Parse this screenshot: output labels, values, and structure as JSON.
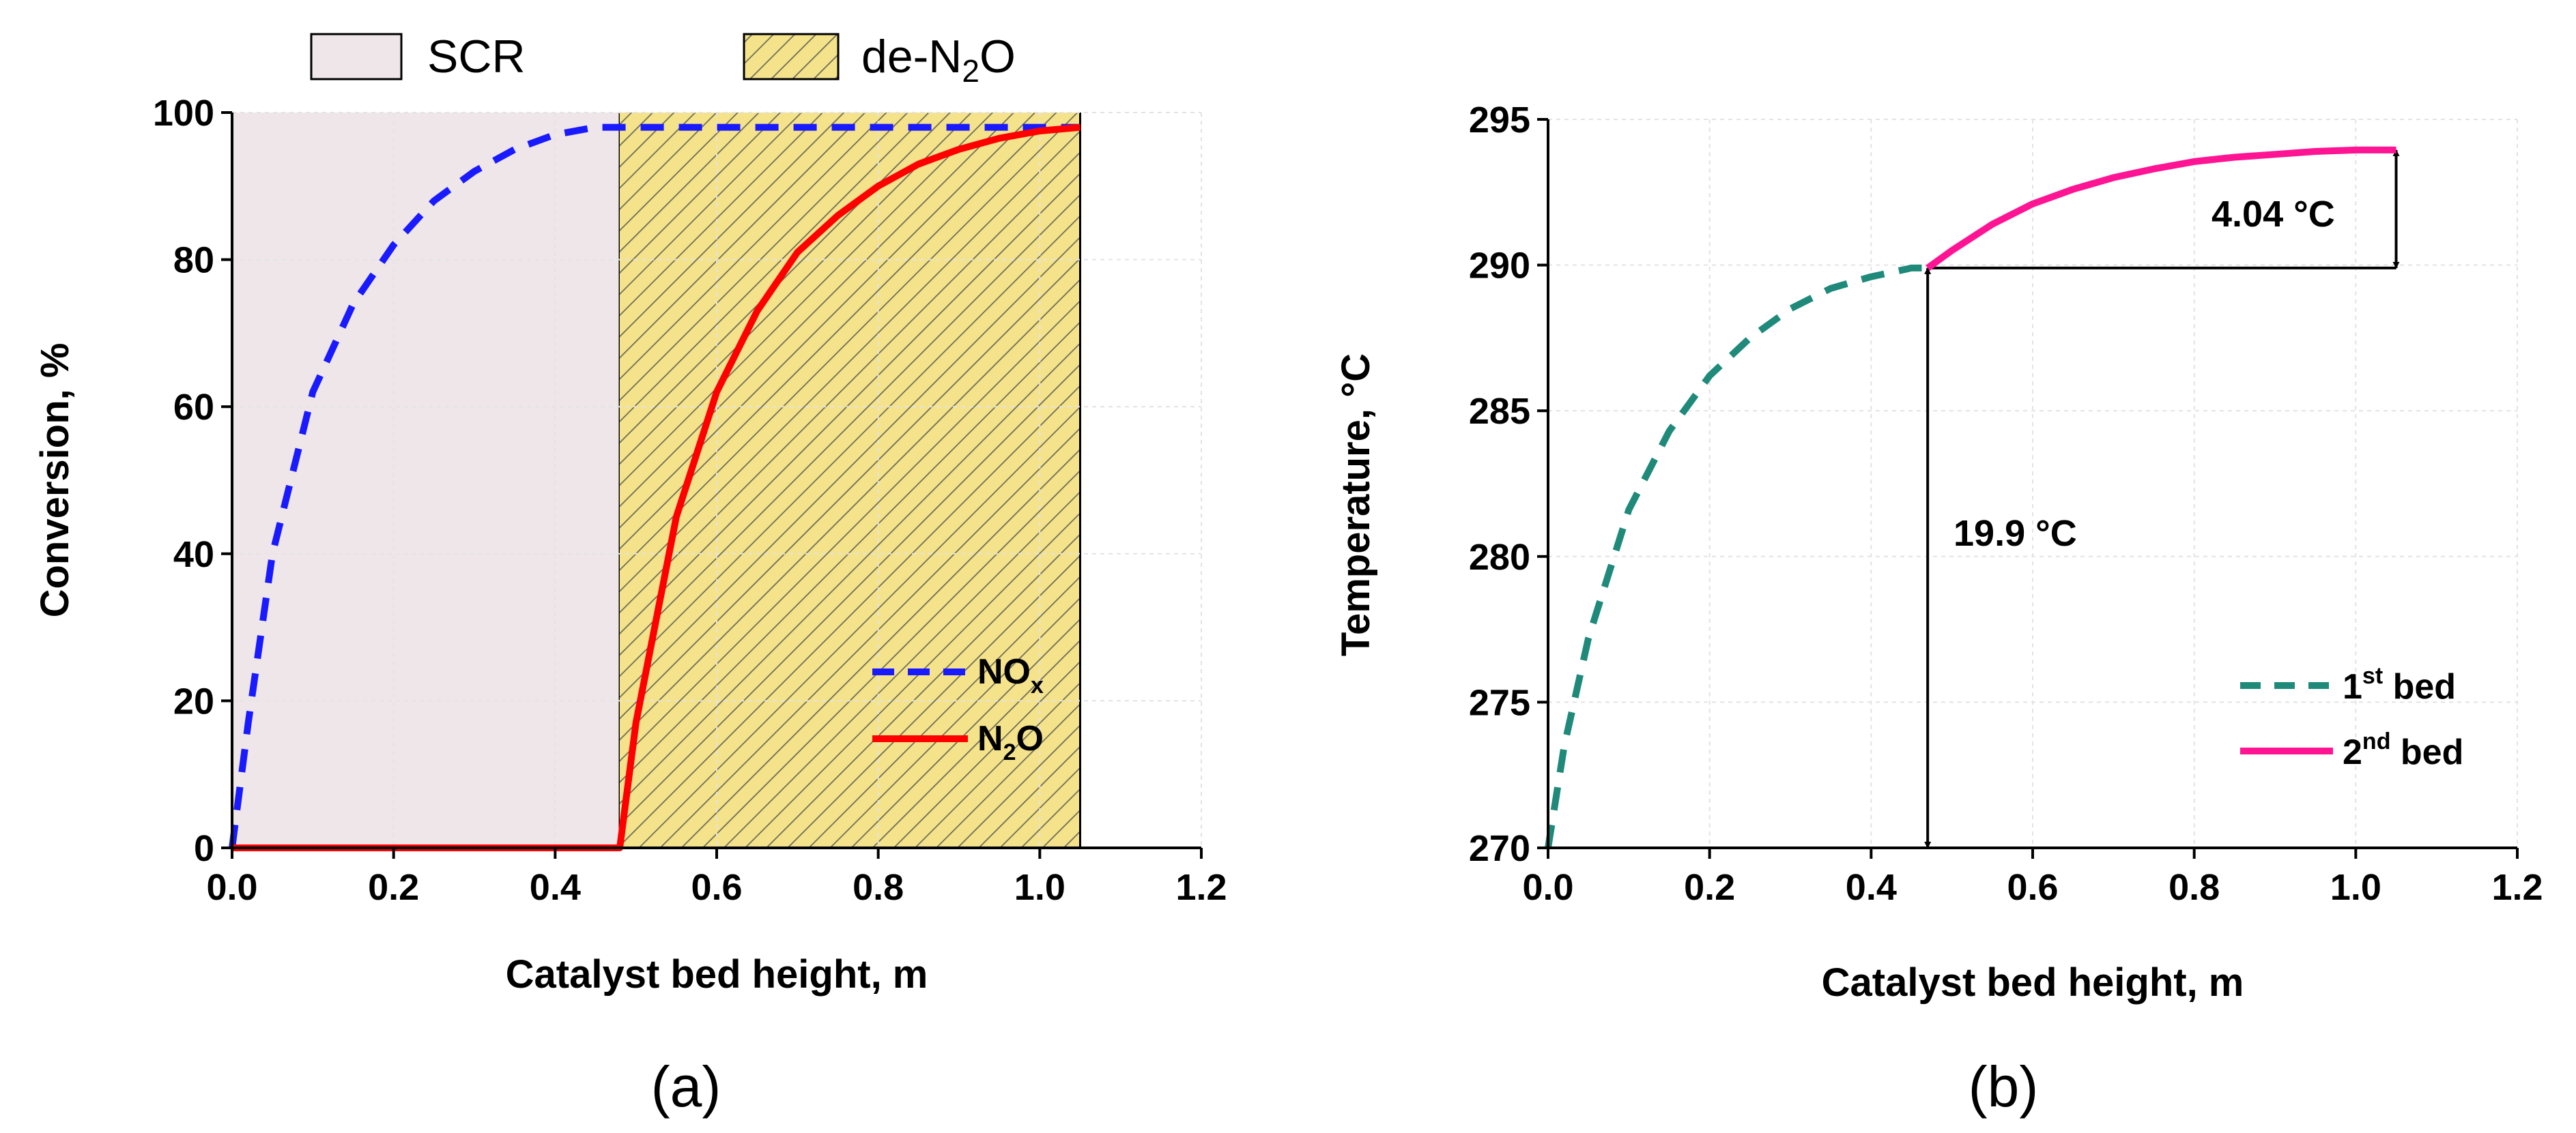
{
  "chart_data": [
    {
      "panel": "(a)",
      "type": "line",
      "xlabel": "Catalyst bed height, m",
      "ylabel": "Conversion, %",
      "xlim": [
        0,
        1.2
      ],
      "ylim": [
        0,
        100
      ],
      "xticks": [
        "0.0",
        "0.2",
        "0.4",
        "0.6",
        "0.8",
        "1.0",
        "1.2"
      ],
      "yticks": [
        "0",
        "20",
        "40",
        "60",
        "80",
        "100"
      ],
      "regions": [
        {
          "name": "SCR",
          "x_start": 0.0,
          "x_end": 0.48,
          "fill": "#efe6e9",
          "hatch": false
        },
        {
          "name": "de-N2O",
          "label_main": "de-N",
          "label_sub": "2",
          "label_end": "O",
          "x_start": 0.48,
          "x_end": 1.05,
          "fill": "#f4e38a",
          "hatch": true
        }
      ],
      "series": [
        {
          "name": "NOx",
          "label_main": "NO",
          "label_sub": "x",
          "style": "dashed",
          "color": "#1a1aff",
          "x": [
            0.0,
            0.02,
            0.05,
            0.1,
            0.15,
            0.2,
            0.25,
            0.3,
            0.35,
            0.4,
            0.45,
            0.48,
            0.6,
            0.8,
            1.0,
            1.05
          ],
          "y": [
            0.0,
            17.0,
            40.0,
            62.0,
            74.0,
            82.0,
            88.0,
            92.0,
            95.0,
            97.0,
            98.0,
            98.0,
            98.0,
            98.0,
            98.0,
            98.0
          ]
        },
        {
          "name": "N2O",
          "label_main": "N",
          "label_sub": "2",
          "label_end": "O",
          "style": "solid",
          "color": "#ff0000",
          "x": [
            0.0,
            0.2,
            0.48,
            0.5,
            0.55,
            0.6,
            0.65,
            0.7,
            0.75,
            0.8,
            0.85,
            0.9,
            0.95,
            1.0,
            1.05
          ],
          "y": [
            0.0,
            0.0,
            0.0,
            17.0,
            45.0,
            62.0,
            73.0,
            81.0,
            86.0,
            90.0,
            93.0,
            95.0,
            96.5,
            97.5,
            98.0
          ]
        }
      ]
    },
    {
      "panel": "(b)",
      "type": "line",
      "xlabel": "Catalyst bed height, m",
      "ylabel": "Temperature, °C",
      "xlim": [
        0,
        1.2
      ],
      "ylim": [
        270,
        295
      ],
      "xticks": [
        "0.0",
        "0.2",
        "0.4",
        "0.6",
        "0.8",
        "1.0",
        "1.2"
      ],
      "yticks": [
        "270",
        "275",
        "280",
        "285",
        "290",
        "295"
      ],
      "series": [
        {
          "name": "1st bed",
          "label_main": "1",
          "label_sup": "st",
          "label_end": " bed",
          "style": "dashed",
          "color": "#1f8a7a",
          "x": [
            0.0,
            0.02,
            0.05,
            0.1,
            0.15,
            0.2,
            0.25,
            0.3,
            0.35,
            0.4,
            0.45,
            0.47
          ],
          "y": [
            270.0,
            273.5,
            277.2,
            281.6,
            284.3,
            286.2,
            287.5,
            288.5,
            289.2,
            289.6,
            289.9,
            289.9
          ]
        },
        {
          "name": "2nd bed",
          "label_main": "2",
          "label_sup": "nd",
          "label_end": " bed",
          "style": "solid",
          "color": "#ff1493",
          "x": [
            0.47,
            0.5,
            0.55,
            0.6,
            0.65,
            0.7,
            0.75,
            0.8,
            0.85,
            0.9,
            0.95,
            1.0,
            1.05
          ],
          "y": [
            289.9,
            290.5,
            291.4,
            292.1,
            292.6,
            293.0,
            293.3,
            293.55,
            293.7,
            293.8,
            293.9,
            293.95,
            293.95
          ]
        }
      ],
      "annotations": [
        {
          "text": "19.9 °C",
          "type": "double-arrow",
          "x": 0.47,
          "y_from": 270,
          "y_to": 289.9
        },
        {
          "text": "4.04 °C",
          "type": "double-arrow",
          "x": 1.05,
          "y_from": 289.9,
          "y_to": 293.95
        },
        {
          "type": "reference-line",
          "y": 289.9,
          "x_from": 0.47,
          "x_to": 1.05
        }
      ]
    }
  ]
}
